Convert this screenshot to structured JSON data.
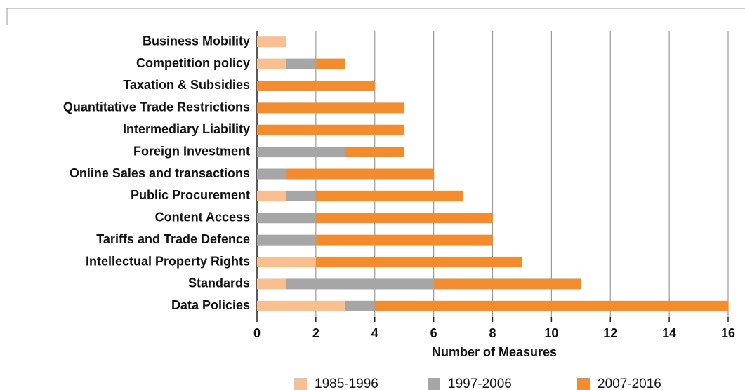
{
  "chart_data": {
    "type": "stacked-bar-horizontal",
    "categories": [
      "Business Mobility",
      "Competition policy",
      "Taxation & Subsidies",
      "Quantitative Trade Restrictions",
      "Intermediary Liability",
      "Foreign Investment",
      "Online Sales and transactions",
      "Public Procurement",
      "Content Access",
      "Tariffs and Trade Defence",
      "Intellectual Property Rights",
      "Standards",
      "Data Policies"
    ],
    "series": [
      {
        "name": "1985-1996",
        "color": "#f9bf8f",
        "values": [
          1,
          1,
          0,
          0,
          0,
          0,
          0,
          1,
          0,
          0,
          2,
          1,
          3
        ]
      },
      {
        "name": "1997-2006",
        "color": "#a6a6a6",
        "values": [
          0,
          1,
          0,
          0,
          0,
          3,
          1,
          1,
          2,
          2,
          0,
          5,
          1
        ]
      },
      {
        "name": "2007-2016",
        "color": "#f48c2d",
        "values": [
          0,
          1,
          4,
          5,
          5,
          2,
          5,
          5,
          6,
          6,
          7,
          5,
          12
        ]
      }
    ],
    "x_label": "Number of Measures",
    "xlim": [
      0,
      16
    ],
    "xticks": [
      0,
      2,
      4,
      6,
      8,
      10,
      12,
      14,
      16
    ],
    "grid": true,
    "legend": "bottom"
  }
}
